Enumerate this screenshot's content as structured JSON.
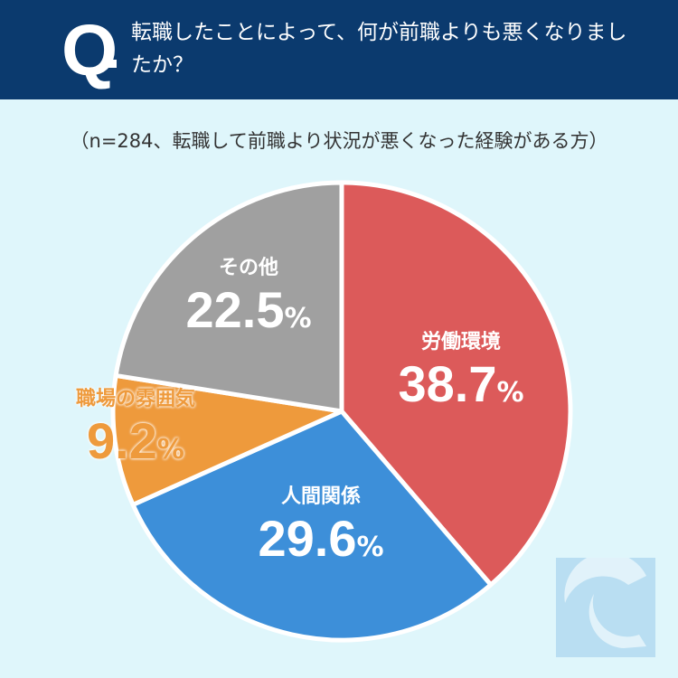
{
  "header": {
    "q_mark": "Q",
    "title": "転職したことによって、何が前職よりも悪くなりましたか？"
  },
  "chart_data": {
    "type": "pie",
    "title": "転職したことによって、何が前職よりも悪くなりましたか？",
    "subtitle": "（n=284、転職して前職より状況が悪くなった経験がある方）",
    "start": "12 o'clock, clockwise",
    "unit": "%",
    "slices": [
      {
        "label": "労働環境",
        "value": 38.7,
        "display": "38.7",
        "color": "#dc5a5a"
      },
      {
        "label": "人間関係",
        "value": 29.6,
        "display": "29.6",
        "color": "#3d8fd9"
      },
      {
        "label": "職場の雰囲気",
        "value": 9.2,
        "display": "9.2",
        "color": "#ee9a3c"
      },
      {
        "label": "その他",
        "value": 22.5,
        "display": "22.5",
        "color": "#a0a0a0"
      }
    ]
  }
}
